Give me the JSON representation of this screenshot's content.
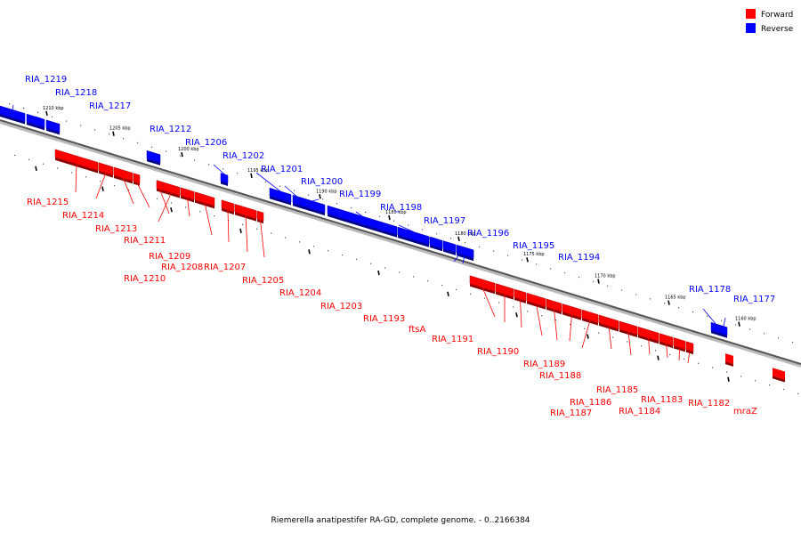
{
  "caption": "Riemerella anatipestifer RA-GD, complete genome. - 0..2166384",
  "legend": {
    "forward_label": "Forward",
    "reverse_label": "Reverse",
    "forward_color": "#ff0000",
    "reverse_color": "#0000ff"
  },
  "scale_ticks": [
    "1210 kbp",
    "1205 kbp",
    "1200 kbp",
    "1195 kbp",
    "1190 kbp",
    "1185 kbp",
    "1180 kbp",
    "1175 kbp",
    "1170 kbp",
    "1165 kbp",
    "1160 kbp"
  ],
  "reverse_genes": [
    "RIA_1219",
    "RIA_1218",
    "RIA_1217",
    "RIA_1212",
    "RIA_1206",
    "RIA_1202",
    "RIA_1201",
    "RIA_1200",
    "RIA_1199",
    "RIA_1198",
    "RIA_1197",
    "RIA_1196",
    "RIA_1195",
    "RIA_1194",
    "RIA_1178",
    "RIA_1177"
  ],
  "forward_genes": [
    "RIA_1215",
    "RIA_1214",
    "RIA_1213",
    "RIA_1211",
    "RIA_1209",
    "RIA_1210",
    "RIA_1208",
    "RIA_1207",
    "RIA_1205",
    "RIA_1204",
    "RIA_1203",
    "RIA_1193",
    "ftsA",
    "RIA_1191",
    "RIA_1190",
    "RIA_1189",
    "RIA_1188",
    "RIA_1187",
    "RIA_1186",
    "RIA_1185",
    "RIA_1184",
    "RIA_1183",
    "RIA_1182",
    "mraZ"
  ]
}
